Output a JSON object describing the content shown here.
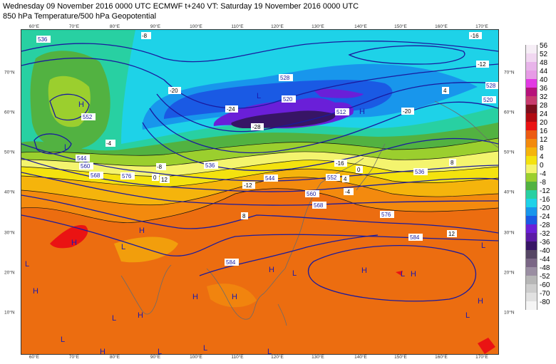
{
  "header": {
    "line1": "Wednesday 09 November 2016 0000 UTC  ECMWF  t+240  VT: Saturday 19 November 2016 0000 UTC",
    "line2": "850 hPa Temperature/500 hPa Geopotential"
  },
  "lon_labels": [
    "60°E",
    "70°E",
    "80°E",
    "90°E",
    "100°E",
    "110°E",
    "120°E",
    "130°E",
    "140°E",
    "150°E",
    "160°E",
    "170°E"
  ],
  "lat_labels": [
    "70°N",
    "60°N",
    "50°N",
    "40°N",
    "30°N",
    "20°N",
    "10°N"
  ],
  "legend": [
    {
      "label": "56",
      "color": "#f6eef6"
    },
    {
      "label": "52",
      "color": "#f1d7f1"
    },
    {
      "label": "48",
      "color": "#e8b4ea"
    },
    {
      "label": "44",
      "color": "#e79be6"
    },
    {
      "label": "40",
      "color": "#e23ae3"
    },
    {
      "label": "36",
      "color": "#b6127a"
    },
    {
      "label": "32",
      "color": "#c83b6e"
    },
    {
      "label": "28",
      "color": "#7d0d1d"
    },
    {
      "label": "24",
      "color": "#b00a12"
    },
    {
      "label": "20",
      "color": "#ea1313"
    },
    {
      "label": "16",
      "color": "#ec5b12"
    },
    {
      "label": "12",
      "color": "#f38a0e"
    },
    {
      "label": "8",
      "color": "#f5b40c"
    },
    {
      "label": "4",
      "color": "#f4e20f"
    },
    {
      "label": "0",
      "color": "#f4f46e"
    },
    {
      "label": "-4",
      "color": "#9bcf2e"
    },
    {
      "label": "-8",
      "color": "#52b241"
    },
    {
      "label": "-12",
      "color": "#28d0a2"
    },
    {
      "label": "-16",
      "color": "#1ed2e8"
    },
    {
      "label": "-20",
      "color": "#1896ec"
    },
    {
      "label": "-24",
      "color": "#1a5ae4"
    },
    {
      "label": "-28",
      "color": "#6a1fd8"
    },
    {
      "label": "-32",
      "color": "#5b1aa5"
    },
    {
      "label": "-36",
      "color": "#371565"
    },
    {
      "label": "-40",
      "color": "#564664"
    },
    {
      "label": "-44",
      "color": "#7a6685"
    },
    {
      "label": "-48",
      "color": "#9a8ea2"
    },
    {
      "label": "-52",
      "color": "#b6b6b6"
    },
    {
      "label": "-60",
      "color": "#cdcdcd"
    },
    {
      "label": "-70",
      "color": "#e1e1e1"
    },
    {
      "label": "-80",
      "color": "#f5f5f5"
    }
  ],
  "geopotential_labels": [
    "536",
    "528",
    "520",
    "512",
    "544",
    "552",
    "560",
    "568",
    "576",
    "584",
    "536",
    "528",
    "520",
    "536",
    "544",
    "552",
    "560",
    "568",
    "576",
    "584"
  ],
  "temperature_labels": [
    "-16",
    "-12",
    "-8",
    "-4",
    "0",
    "4",
    "8",
    "12",
    "-20",
    "-24",
    "-28",
    "-20",
    "-16",
    "-12",
    "-8",
    "-4",
    "0",
    "4",
    "8",
    "12"
  ],
  "pressure_centres": [
    "H",
    "L",
    "H",
    "L",
    "H",
    "L",
    "H",
    "L",
    "H",
    "L",
    "H",
    "L",
    "H",
    "L",
    "H",
    "L",
    "H",
    "L",
    "H",
    "L",
    "H",
    "L",
    "H",
    "L",
    "H",
    "L"
  ],
  "colors": {
    "contour": "#1a1a9e",
    "temp_contour": "#111111",
    "coast": "#6b6b6b"
  }
}
